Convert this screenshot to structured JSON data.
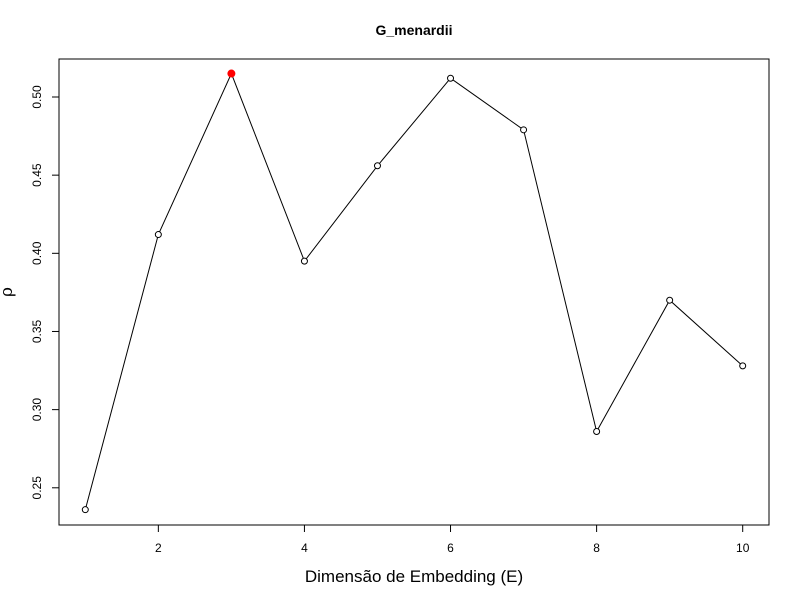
{
  "chart_data": {
    "type": "line",
    "title": "G_menardii",
    "xlabel": "Dimensão de Embedding (E)",
    "ylabel": "ρ",
    "xlim": [
      0.64,
      10.36
    ],
    "ylim": [
      0.2262,
      0.5243
    ],
    "x_ticks": [
      2,
      4,
      6,
      8,
      10
    ],
    "y_ticks": [
      0.25,
      0.3,
      0.35,
      0.4,
      0.45,
      0.5
    ],
    "x_tick_labels": [
      "2",
      "4",
      "6",
      "8",
      "10"
    ],
    "y_tick_labels": [
      "0.25",
      "0.30",
      "0.35",
      "0.40",
      "0.45",
      "0.50"
    ],
    "grid": false,
    "series": [
      {
        "x": [
          1,
          2,
          3,
          4,
          5,
          6,
          7,
          8,
          9,
          10
        ],
        "y": [
          0.236,
          0.412,
          0.515,
          0.395,
          0.456,
          0.512,
          0.479,
          0.286,
          0.37,
          0.328
        ],
        "line_color": "#000000",
        "marker": "open-circle"
      }
    ],
    "highlight": {
      "x": 3,
      "y": 0.515,
      "color": "#ff0000"
    }
  }
}
